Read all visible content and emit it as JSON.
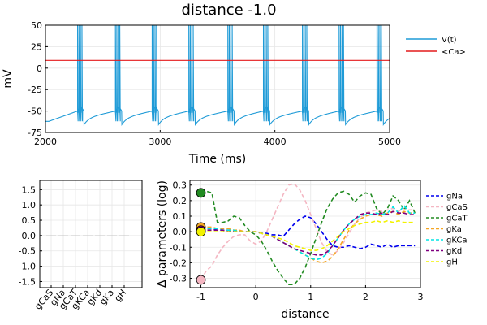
{
  "chart_data": [
    {
      "type": "line",
      "title": "distance -1.0",
      "xlabel": "Time (ms)",
      "ylabel": "mV",
      "xlim": [
        2000,
        5000
      ],
      "ylim": [
        -75,
        50
      ],
      "xticks": [
        "2000",
        "3000",
        "4000",
        "5000"
      ],
      "yticks": [
        "50",
        "25",
        "0",
        "-25",
        "-50",
        "-75"
      ],
      "grid": true,
      "legend": "top-right",
      "series": [
        {
          "name": "V(t)",
          "color": "#1f9bd7",
          "bursts": [
            2280,
            2610,
            2930,
            3250,
            3590,
            3900,
            4240,
            4560,
            4890
          ],
          "baseline_min": -65,
          "peak": 50
        },
        {
          "name": "<Ca>",
          "color": "#e41a1c",
          "values": [
            9,
            9
          ]
        }
      ]
    },
    {
      "type": "bar",
      "categories": [
        "gCaS",
        "gNa",
        "gCaT",
        "gKCa",
        "gKd",
        "gKa",
        "gH"
      ],
      "values": [
        0,
        0,
        0,
        0,
        0,
        0,
        0
      ],
      "ylim": [
        -1.7,
        1.8
      ],
      "yticks": [
        "1.5",
        "1.0",
        "0.5",
        "0.0",
        "-0.5",
        "-1.0",
        "-1.5"
      ],
      "grid": true
    },
    {
      "type": "line",
      "xlabel": "distance",
      "ylabel": "Δ parameters (log)",
      "xlim": [
        -1.2,
        3.0
      ],
      "ylim": [
        -0.36,
        0.33
      ],
      "xticks": [
        "-1",
        "0",
        "1",
        "2",
        "3"
      ],
      "yticks": [
        "0.3",
        "0.2",
        "0.1",
        "0.0",
        "-0.1",
        "-0.2",
        "-0.3"
      ],
      "grid": true,
      "legend": "right",
      "x": [
        -1.0,
        -0.9,
        -0.8,
        -0.7,
        -0.6,
        -0.5,
        -0.4,
        -0.3,
        -0.2,
        -0.1,
        0.0,
        0.1,
        0.2,
        0.3,
        0.4,
        0.5,
        0.6,
        0.7,
        0.8,
        0.9,
        1.0,
        1.1,
        1.2,
        1.3,
        1.4,
        1.5,
        1.6,
        1.7,
        1.8,
        1.9,
        2.0,
        2.1,
        2.2,
        2.3,
        2.4,
        2.5,
        2.6,
        2.7,
        2.8,
        2.9
      ],
      "series": [
        {
          "name": "gNa",
          "color": "#0000ee",
          "values": [
            0.02,
            0.02,
            0.02,
            0.01,
            0.01,
            0.01,
            0.0,
            0.0,
            0.0,
            0.0,
            0.0,
            -0.01,
            -0.01,
            -0.02,
            -0.02,
            -0.03,
            0.01,
            0.05,
            0.08,
            0.1,
            0.09,
            0.05,
            0.0,
            -0.05,
            -0.09,
            -0.1,
            -0.1,
            -0.09,
            -0.1,
            -0.11,
            -0.1,
            -0.08,
            -0.09,
            -0.1,
            -0.08,
            -0.1,
            -0.09,
            -0.09,
            -0.09,
            -0.09
          ]
        },
        {
          "name": "gCaS",
          "color": "#f4b6c2",
          "values": [
            -0.31,
            -0.25,
            -0.22,
            -0.15,
            -0.1,
            -0.06,
            -0.03,
            -0.02,
            -0.02,
            -0.06,
            -0.08,
            -0.06,
            0.0,
            0.08,
            0.16,
            0.24,
            0.3,
            0.31,
            0.27,
            0.2,
            0.11,
            0.02,
            -0.07,
            -0.13,
            -0.15,
            -0.12,
            -0.07,
            -0.01,
            0.05,
            0.09,
            0.12,
            0.13,
            0.14,
            0.13,
            0.14,
            0.15,
            0.13,
            0.15,
            0.14,
            0.14
          ]
        },
        {
          "name": "gCaT",
          "color": "#228b22",
          "values": [
            0.25,
            0.26,
            0.25,
            0.06,
            0.06,
            0.07,
            0.1,
            0.09,
            0.04,
            0.0,
            -0.02,
            -0.06,
            -0.12,
            -0.19,
            -0.25,
            -0.3,
            -0.34,
            -0.34,
            -0.3,
            -0.23,
            -0.14,
            -0.04,
            0.06,
            0.15,
            0.21,
            0.25,
            0.26,
            0.24,
            0.19,
            0.23,
            0.25,
            0.24,
            0.15,
            0.11,
            0.15,
            0.23,
            0.2,
            0.14,
            0.2,
            0.12
          ]
        },
        {
          "name": "gKa",
          "color": "#f5a623",
          "values": [
            0.03,
            0.03,
            0.03,
            0.02,
            0.02,
            0.02,
            0.01,
            0.01,
            0.0,
            0.0,
            0.0,
            -0.01,
            -0.02,
            -0.03,
            -0.05,
            -0.07,
            -0.09,
            -0.11,
            -0.13,
            -0.15,
            -0.17,
            -0.19,
            -0.2,
            -0.19,
            -0.16,
            -0.11,
            -0.05,
            0.01,
            0.05,
            0.08,
            0.1,
            0.11,
            0.11,
            0.1,
            0.12,
            0.13,
            0.11,
            0.13,
            0.12,
            0.12
          ]
        },
        {
          "name": "gKCa",
          "color": "#00e5e5",
          "values": [
            0.02,
            0.02,
            0.02,
            0.02,
            0.01,
            0.01,
            0.01,
            0.0,
            0.0,
            0.0,
            0.0,
            -0.01,
            -0.02,
            -0.03,
            -0.05,
            -0.07,
            -0.09,
            -0.11,
            -0.13,
            -0.15,
            -0.17,
            -0.18,
            -0.17,
            -0.14,
            -0.09,
            -0.04,
            0.01,
            0.05,
            0.08,
            0.1,
            0.11,
            0.11,
            0.12,
            0.11,
            0.12,
            0.16,
            0.12,
            0.17,
            0.12,
            0.12
          ]
        },
        {
          "name": "gKd",
          "color": "#800080",
          "values": [
            0.01,
            0.01,
            0.01,
            0.01,
            0.01,
            0.0,
            0.0,
            0.0,
            0.0,
            0.0,
            0.0,
            -0.01,
            -0.02,
            -0.03,
            -0.05,
            -0.07,
            -0.09,
            -0.11,
            -0.12,
            -0.13,
            -0.14,
            -0.15,
            -0.15,
            -0.13,
            -0.09,
            -0.04,
            0.01,
            0.05,
            0.08,
            0.11,
            0.12,
            0.12,
            0.11,
            0.12,
            0.11,
            0.13,
            0.12,
            0.12,
            0.11,
            0.11
          ]
        },
        {
          "name": "gH",
          "color": "#f2f200",
          "values": [
            0.0,
            0.0,
            0.0,
            0.0,
            0.0,
            0.0,
            0.0,
            0.0,
            0.0,
            0.0,
            0.0,
            -0.01,
            -0.02,
            -0.03,
            -0.04,
            -0.05,
            -0.07,
            -0.09,
            -0.1,
            -0.11,
            -0.12,
            -0.12,
            -0.11,
            -0.09,
            -0.06,
            -0.03,
            0.0,
            0.02,
            0.04,
            0.05,
            0.06,
            0.06,
            0.07,
            0.06,
            0.07,
            0.06,
            0.07,
            0.06,
            0.06,
            0.06
          ]
        }
      ],
      "markers": {
        "x": -1.0,
        "points": [
          {
            "series": "gCaT",
            "value": 0.25
          },
          {
            "series": "gKa",
            "value": 0.03
          },
          {
            "series": "gKd",
            "value": 0.01
          },
          {
            "series": "gH",
            "value": 0.0
          },
          {
            "series": "gCaS",
            "value": -0.31
          }
        ]
      }
    }
  ]
}
